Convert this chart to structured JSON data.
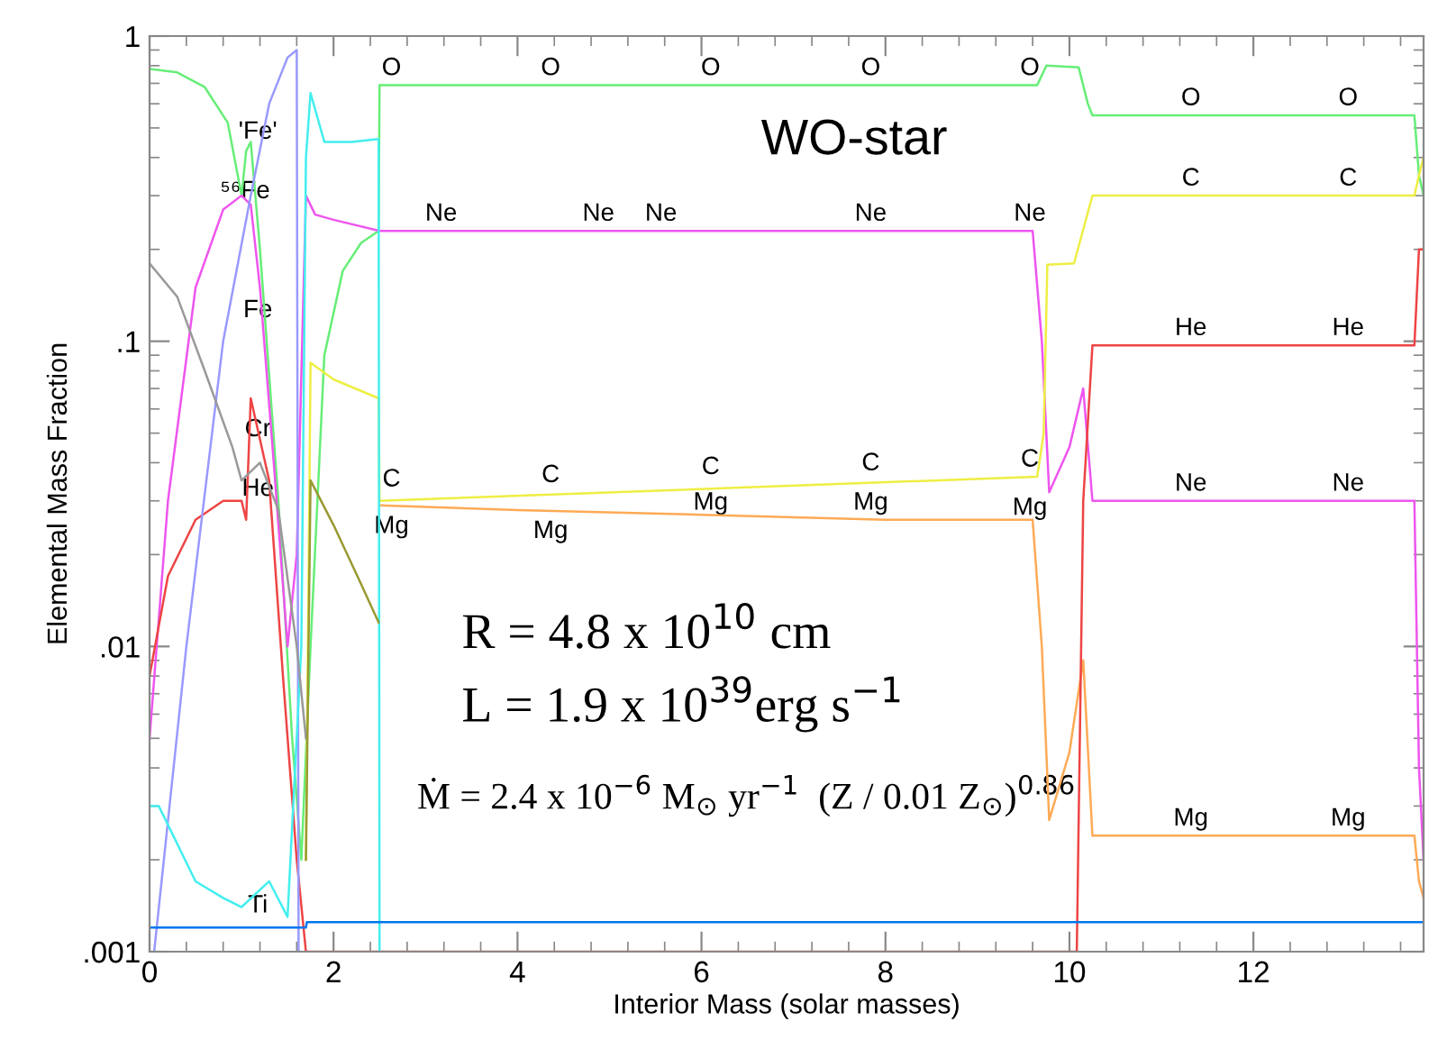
{
  "chart_data": {
    "type": "line",
    "xlabel": "Interior Mass (solar masses)",
    "ylabel": "Elemental Mass Fraction",
    "log": "y",
    "grid": false,
    "xlim": [
      0,
      13.85
    ],
    "ylim": [
      0.001,
      1
    ],
    "xticks": [
      0,
      2,
      4,
      6,
      8,
      10,
      12
    ],
    "yticks": [
      {
        "value": 0.001,
        "label": ".001"
      },
      {
        "value": 0.01,
        "label": ".01"
      },
      {
        "value": 0.1,
        "label": ".1"
      },
      {
        "value": 1,
        "label": "1"
      }
    ],
    "series": [
      {
        "color": "#66ee77",
        "x": [
          0,
          0.3,
          0.6,
          0.85,
          1.0,
          1.05,
          1.1,
          1.2,
          1.4,
          1.55,
          1.65,
          1.75,
          1.9,
          2.1,
          2.3,
          2.49,
          2.5,
          9.65,
          9.75,
          10.1,
          10.2,
          10.25,
          13.75,
          13.8,
          13.85
        ],
        "values": [
          0.78,
          0.76,
          0.68,
          0.52,
          0.3,
          0.42,
          0.45,
          0.2,
          0.03,
          0.005,
          0.002,
          0.01,
          0.09,
          0.17,
          0.21,
          0.23,
          0.69,
          0.69,
          0.8,
          0.79,
          0.6,
          0.55,
          0.55,
          0.35,
          0.3
        ]
      },
      {
        "color": "#ee55ee",
        "x": [
          0,
          0.2,
          0.5,
          0.8,
          1.0,
          1.1,
          1.2,
          1.35,
          1.5,
          1.6,
          1.7,
          1.8,
          2.0,
          2.5,
          9.6,
          9.7,
          9.78,
          10.0,
          10.15,
          10.25,
          13.75,
          13.8,
          13.85
        ],
        "values": [
          0.005,
          0.03,
          0.15,
          0.27,
          0.3,
          0.28,
          0.15,
          0.04,
          0.01,
          0.02,
          0.3,
          0.26,
          0.25,
          0.23,
          0.23,
          0.1,
          0.032,
          0.045,
          0.07,
          0.03,
          0.03,
          0.004,
          0.002
        ]
      },
      {
        "color": "#eeee44",
        "x": [
          1.7,
          1.75,
          2.0,
          2.49,
          2.5,
          9.65,
          9.72,
          9.76,
          10.05,
          10.25,
          13.75,
          13.8,
          13.85
        ],
        "values": [
          0.002,
          0.085,
          0.075,
          0.065,
          0.03,
          0.036,
          0.05,
          0.178,
          0.18,
          0.3,
          0.3,
          0.35,
          0.4
        ]
      },
      {
        "color": "#ffaa55",
        "x": [
          2.5,
          4.0,
          6.0,
          8.0,
          9.6,
          9.7,
          9.78,
          10.0,
          10.15,
          10.25,
          13.75,
          13.8,
          13.85
        ],
        "values": [
          0.029,
          0.028,
          0.027,
          0.026,
          0.026,
          0.01,
          0.0027,
          0.0045,
          0.009,
          0.0024,
          0.0024,
          0.0017,
          0.0015
        ]
      },
      {
        "color": "#ee4444",
        "x": [
          0,
          0.2,
          0.5,
          0.8,
          1.0,
          1.05,
          1.1,
          1.3,
          1.45,
          1.6,
          1.7,
          10.08,
          10.15,
          10.25,
          13.75,
          13.8,
          13.85
        ],
        "values": [
          0.008,
          0.017,
          0.026,
          0.03,
          0.03,
          0.026,
          0.065,
          0.035,
          0.008,
          0.002,
          0.001,
          0.001,
          0.03,
          0.097,
          0.097,
          0.2,
          0.2
        ]
      },
      {
        "color": "#9999ff",
        "x": [
          0.05,
          0.4,
          0.8,
          1.1,
          1.3,
          1.5,
          1.6,
          1.62
        ],
        "values": [
          0.001,
          0.01,
          0.1,
          0.3,
          0.6,
          0.85,
          0.9,
          0.001
        ]
      },
      {
        "color": "#44eeee",
        "x": [
          0,
          0.1,
          0.5,
          0.8,
          1.0,
          1.3,
          1.5,
          1.65,
          1.7,
          1.75,
          1.9,
          2.2,
          2.49,
          2.5
        ],
        "values": [
          0.003,
          0.003,
          0.0017,
          0.0015,
          0.0014,
          0.0017,
          0.0013,
          0.01,
          0.4,
          0.65,
          0.45,
          0.45,
          0.46,
          0.001
        ]
      },
      {
        "color": "#999999",
        "x": [
          0,
          0.3,
          0.6,
          0.9,
          1.0,
          1.2,
          1.4,
          1.6,
          1.7
        ],
        "values": [
          0.18,
          0.14,
          0.08,
          0.045,
          0.035,
          0.04,
          0.028,
          0.01,
          0.005
        ]
      },
      {
        "color": "#999933",
        "x": [
          1.7,
          1.75,
          2.0,
          2.3,
          2.49
        ],
        "values": [
          0.002,
          0.035,
          0.025,
          0.016,
          0.012
        ]
      },
      {
        "color": "#0077ee",
        "x": [
          0,
          1.7,
          1.71,
          13.85
        ],
        "values": [
          0.0012,
          0.0012,
          0.00125,
          0.00125
        ]
      }
    ],
    "annotations": [
      "WO-star",
      "R = 4.8 x 10$^{10}$ cm",
      "L = 1.9 x 10$^{39}$erg s$^{−1}$",
      "Ṁ = 2.4 x 10$^{−6}$ M$_{⊙}$ yr$^{−1}$  (Z / 0.01 Z$_{⊙}$)$^{0.86}$",
      "'Fe'",
      "⁵⁶Fe",
      "Fe",
      "Cr",
      "He",
      "Ti",
      {
        "text": "O",
        "x": 2.63,
        "y": 0.69
      },
      {
        "text": "O",
        "x": 4.36,
        "y": 0.69
      },
      {
        "text": "O",
        "x": 6.1,
        "y": 0.69
      },
      {
        "text": "O",
        "x": 7.84,
        "y": 0.69
      },
      {
        "text": "O",
        "x": 9.57,
        "y": 0.69
      },
      {
        "text": "O",
        "x": 11.32,
        "y": 0.55
      },
      {
        "text": "O",
        "x": 13.03,
        "y": 0.55
      },
      {
        "text": "Ne",
        "x": 3.17,
        "y": 0.23
      },
      {
        "text": "Ne",
        "x": 4.88,
        "y": 0.23
      },
      {
        "text": "Ne",
        "x": 5.56,
        "y": 0.23
      },
      {
        "text": "Ne",
        "x": 7.84,
        "y": 0.23
      },
      {
        "text": "Ne",
        "x": 9.57,
        "y": 0.23
      },
      {
        "text": "Ne",
        "x": 11.32,
        "y": 0.03
      },
      {
        "text": "Ne",
        "x": 13.03,
        "y": 0.03
      },
      {
        "text": "C",
        "x": 2.63,
        "y": 0.031
      },
      {
        "text": "C",
        "x": 4.36,
        "y": 0.032
      },
      {
        "text": "C",
        "x": 6.1,
        "y": 0.034
      },
      {
        "text": "C",
        "x": 7.84,
        "y": 0.035
      },
      {
        "text": "C",
        "x": 9.57,
        "y": 0.036
      },
      {
        "text": "C",
        "x": 11.32,
        "y": 0.3
      },
      {
        "text": "C",
        "x": 13.03,
        "y": 0.3
      },
      {
        "text": "Mg",
        "x": 2.63,
        "y": 0.028
      },
      {
        "text": "Mg",
        "x": 4.36,
        "y": 0.027
      },
      {
        "text": "Mg",
        "x": 6.1,
        "y": 0.026
      },
      {
        "text": "Mg",
        "x": 7.84,
        "y": 0.026
      },
      {
        "text": "Mg",
        "x": 9.57,
        "y": 0.025
      },
      {
        "text": "Mg",
        "x": 11.32,
        "y": 0.0024
      },
      {
        "text": "Mg",
        "x": 13.03,
        "y": 0.0024
      },
      {
        "text": "He",
        "x": 11.32,
        "y": 0.097
      },
      {
        "text": "He",
        "x": 13.03,
        "y": 0.097
      }
    ]
  }
}
